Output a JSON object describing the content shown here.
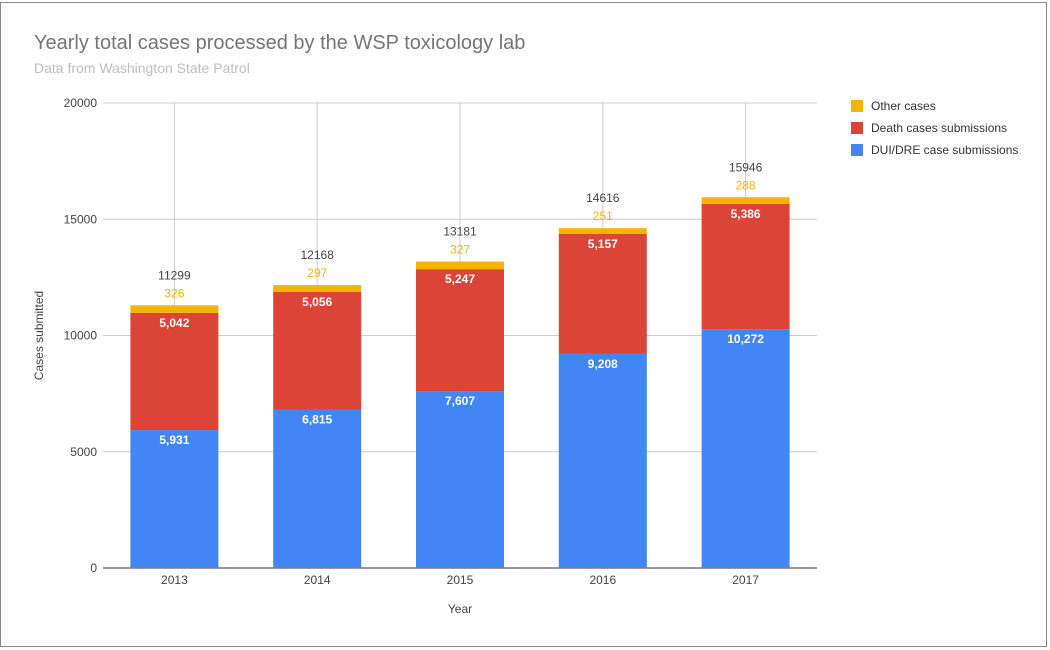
{
  "chart_data": {
    "type": "bar",
    "stacked": true,
    "title": "Yearly total cases processed by the WSP toxicology lab",
    "subtitle": "Data from Washington State Patrol",
    "xlabel": "Year",
    "ylabel": "Cases submitted",
    "ylim": [
      0,
      20000
    ],
    "yticks": [
      0,
      5000,
      10000,
      15000,
      20000
    ],
    "grid": true,
    "legend_position": "right",
    "categories": [
      "2013",
      "2014",
      "2015",
      "2016",
      "2017"
    ],
    "series": [
      {
        "name": "DUI/DRE case submissions",
        "color": "#4285f4",
        "values": [
          5931,
          6815,
          7607,
          9208,
          10272
        ],
        "labels": [
          "5,931",
          "6,815",
          "7,607",
          "9,208",
          "10,272"
        ]
      },
      {
        "name": "Death cases submissions",
        "color": "#db4437",
        "values": [
          5042,
          5056,
          5247,
          5157,
          5386
        ],
        "labels": [
          "5,042",
          "5,056",
          "5,247",
          "5,157",
          "5,386"
        ]
      },
      {
        "name": "Other cases",
        "color": "#f4b400",
        "values": [
          326,
          297,
          327,
          251,
          288
        ],
        "labels": [
          "326",
          "297",
          "327",
          "251",
          "288"
        ]
      }
    ],
    "totals": [
      "11299",
      "12168",
      "13181",
      "14616",
      "15946"
    ]
  }
}
